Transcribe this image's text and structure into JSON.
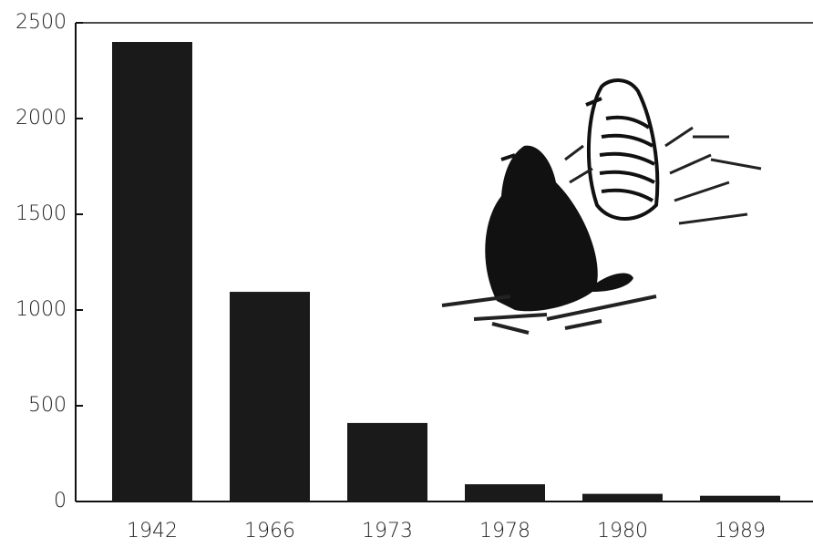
{
  "chart_data": {
    "type": "bar",
    "categories": [
      "1942",
      "1966",
      "1973",
      "1978",
      "1980",
      "1989"
    ],
    "values": [
      2400,
      1095,
      410,
      90,
      40,
      30
    ],
    "color": "#1a1a1a",
    "ylim": [
      0,
      2500
    ],
    "yticks": [
      0,
      500,
      1000,
      1500,
      2000,
      2500
    ]
  }
}
